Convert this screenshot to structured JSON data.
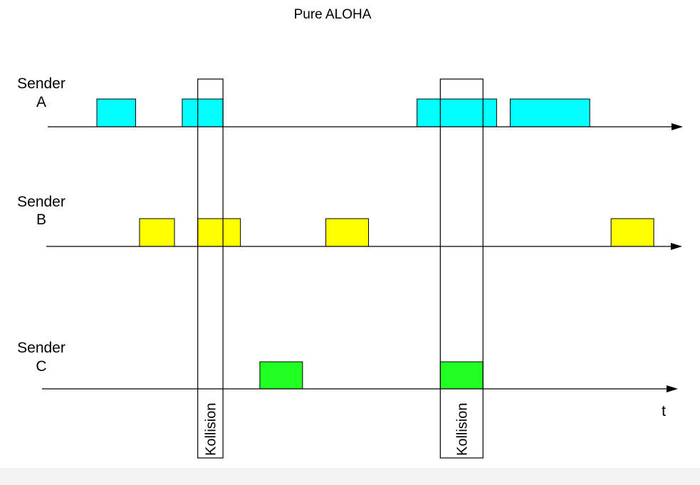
{
  "title": "Pure ALOHA",
  "time_axis_label": "t",
  "collision_label": "Kollision",
  "colors": {
    "A": "#00ffff",
    "B": "#ffff00",
    "C": "#22ff22",
    "line": "#000000"
  },
  "senders": [
    {
      "id": "A",
      "line1": "Sender",
      "line2": "A"
    },
    {
      "id": "B",
      "line1": "Sender",
      "line2": "B"
    },
    {
      "id": "C",
      "line1": "Sender",
      "line2": "C"
    }
  ],
  "frames": {
    "A": [
      [
        0,
        1
      ],
      [
        2.2,
        3.25
      ],
      [
        8.25,
        10.3
      ],
      [
        10.65,
        12.7
      ]
    ],
    "B": [
      [
        1.1,
        2.0
      ],
      [
        2.6,
        3.7
      ],
      [
        5.9,
        7.0
      ],
      [
        13.25,
        14.35
      ]
    ],
    "C": [
      [
        4.2,
        5.3
      ],
      [
        8.85,
        9.95
      ]
    ]
  },
  "collisions": [
    [
      2.6,
      3.25
    ],
    [
      8.85,
      9.95
    ]
  ]
}
